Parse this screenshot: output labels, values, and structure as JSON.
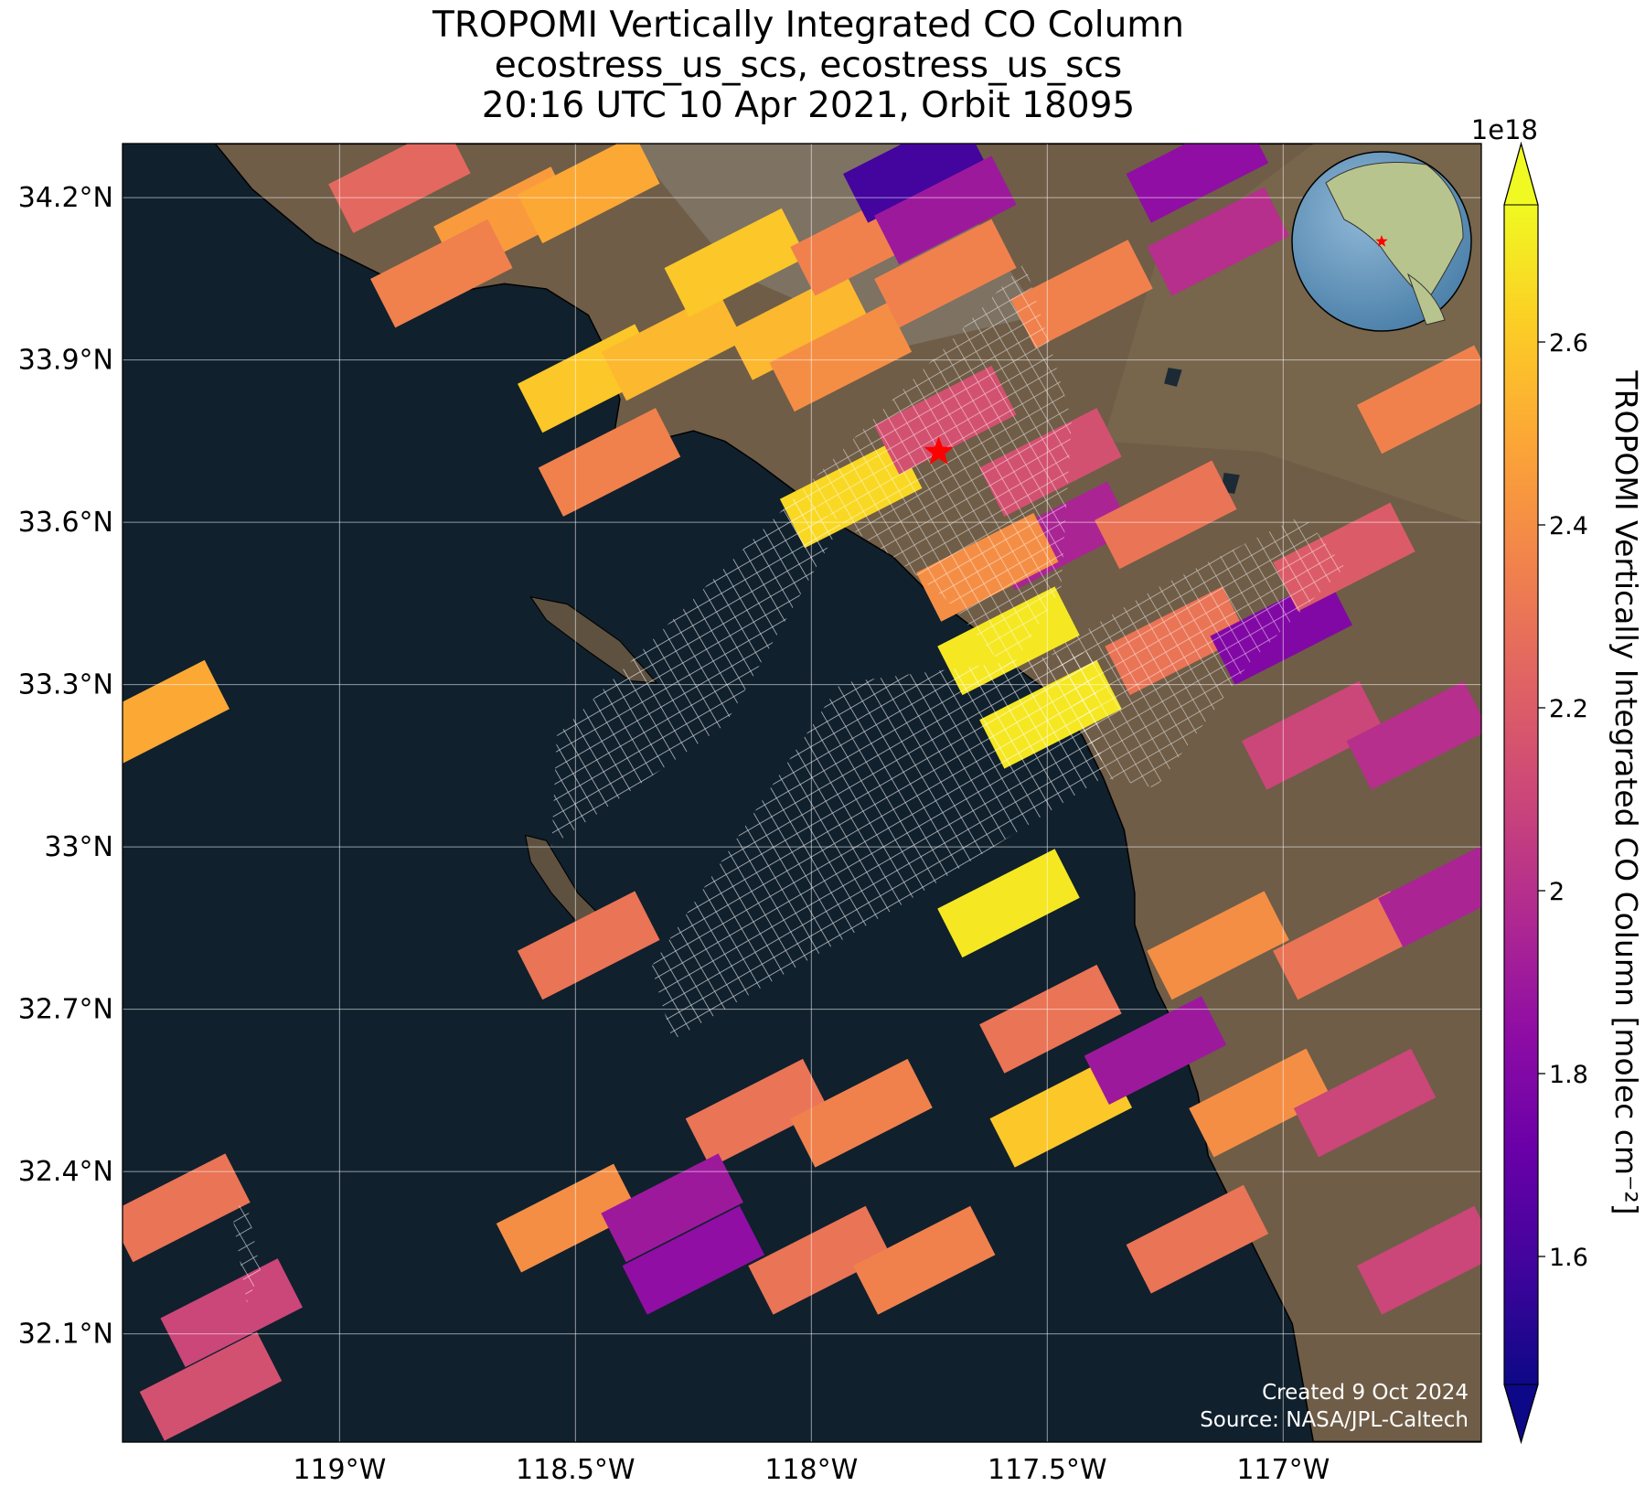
{
  "chart_data": {
    "type": "map",
    "title": [
      "TROPOMI Vertically Integrated CO Column",
      "ecostress_us_scs, ecostress_us_scs",
      "20:16 UTC 10 Apr 2021, Orbit 18095"
    ],
    "xlim": [
      -119.46,
      -116.58
    ],
    "ylim": [
      31.9,
      34.3
    ],
    "xticks": [
      {
        "value": -119,
        "label": "119°W"
      },
      {
        "value": -118.5,
        "label": "118.5°W"
      },
      {
        "value": -118,
        "label": "118°W"
      },
      {
        "value": -117.5,
        "label": "117.5°W"
      },
      {
        "value": -117,
        "label": "117°W"
      }
    ],
    "yticks": [
      {
        "value": 34.2,
        "label": "34.2°N"
      },
      {
        "value": 33.9,
        "label": "33.9°N"
      },
      {
        "value": 33.6,
        "label": "33.6°N"
      },
      {
        "value": 33.3,
        "label": "33.3°N"
      },
      {
        "value": 33.0,
        "label": "33°N"
      },
      {
        "value": 32.7,
        "label": "32.7°N"
      },
      {
        "value": 32.4,
        "label": "32.4°N"
      },
      {
        "value": 32.1,
        "label": "32.1°N"
      }
    ],
    "grid": true,
    "colorbar": {
      "label": "TROPOMI Vertically Integrated CO Column [molec cm⁻²]",
      "offset_label": "1e18",
      "cmap": "plasma",
      "lim": [
        1.46,
        2.75
      ],
      "ticks": [
        1.6,
        1.8,
        2.0,
        2.2,
        2.4,
        2.6
      ]
    },
    "target": {
      "lon": -117.73,
      "lat": 33.73,
      "color": "#ff0000"
    },
    "annotations": [
      "Created 9 Oct 2024",
      "Source: NASA/JPL-Caltech"
    ],
    "tiles": [
      {
        "lon": -118.873,
        "lat": 34.235,
        "value": 2.25
      },
      {
        "lon": -118.65,
        "lat": 34.157,
        "value": 2.45
      },
      {
        "lon": -118.784,
        "lat": 34.06,
        "value": 2.35
      },
      {
        "lon": -118.472,
        "lat": 34.216,
        "value": 2.5
      },
      {
        "lon": -118.472,
        "lat": 33.866,
        "value": 2.6
      },
      {
        "lon": -118.294,
        "lat": 33.925,
        "value": 2.55
      },
      {
        "lon": -118.428,
        "lat": 33.711,
        "value": 2.35
      },
      {
        "lon": -118.161,
        "lat": 34.08,
        "value": 2.6
      },
      {
        "lon": -118.027,
        "lat": 33.963,
        "value": 2.55
      },
      {
        "lon": -117.894,
        "lat": 34.119,
        "value": 2.35
      },
      {
        "lon": -117.938,
        "lat": 33.905,
        "value": 2.4
      },
      {
        "lon": -117.916,
        "lat": 33.653,
        "value": 2.65
      },
      {
        "lon": -117.782,
        "lat": 34.254,
        "value": 1.6
      },
      {
        "lon": -117.716,
        "lat": 34.177,
        "value": 1.9
      },
      {
        "lon": -117.716,
        "lat": 34.06,
        "value": 2.35
      },
      {
        "lon": -117.427,
        "lat": 34.022,
        "value": 2.35
      },
      {
        "lon": -117.138,
        "lat": 34.119,
        "value": 2.0
      },
      {
        "lon": -117.182,
        "lat": 34.254,
        "value": 1.85
      },
      {
        "lon": -117.716,
        "lat": 33.789,
        "value": 2.15
      },
      {
        "lon": -117.493,
        "lat": 33.711,
        "value": 2.15
      },
      {
        "lon": -117.471,
        "lat": 33.575,
        "value": 1.95
      },
      {
        "lon": -117.249,
        "lat": 33.614,
        "value": 2.3
      },
      {
        "lon": -117.627,
        "lat": 33.517,
        "value": 2.4
      },
      {
        "lon": -117.582,
        "lat": 33.381,
        "value": 2.7
      },
      {
        "lon": -117.493,
        "lat": 33.245,
        "value": 2.7
      },
      {
        "lon": -117.227,
        "lat": 33.381,
        "value": 2.3
      },
      {
        "lon": -117.004,
        "lat": 33.4,
        "value": 1.8
      },
      {
        "lon": -116.937,
        "lat": 33.206,
        "value": 2.1
      },
      {
        "lon": -116.715,
        "lat": 33.206,
        "value": 2.0
      },
      {
        "lon": -116.871,
        "lat": 33.536,
        "value": 2.2
      },
      {
        "lon": -116.693,
        "lat": 33.827,
        "value": 2.35
      },
      {
        "lon": -119.384,
        "lat": 33.245,
        "value": 2.5
      },
      {
        "lon": -118.472,
        "lat": 32.818,
        "value": 2.3
      },
      {
        "lon": -117.582,
        "lat": 32.896,
        "value": 2.7
      },
      {
        "lon": -117.493,
        "lat": 32.682,
        "value": 2.3
      },
      {
        "lon": -117.471,
        "lat": 32.508,
        "value": 2.6
      },
      {
        "lon": -117.271,
        "lat": 32.624,
        "value": 1.9
      },
      {
        "lon": -117.138,
        "lat": 32.818,
        "value": 2.4
      },
      {
        "lon": -116.871,
        "lat": 32.818,
        "value": 2.3
      },
      {
        "lon": -117.049,
        "lat": 32.527,
        "value": 2.4
      },
      {
        "lon": -116.827,
        "lat": 32.527,
        "value": 2.1
      },
      {
        "lon": -117.182,
        "lat": 32.275,
        "value": 2.3
      },
      {
        "lon": -116.693,
        "lat": 32.236,
        "value": 2.1
      },
      {
        "lon": -116.648,
        "lat": 32.915,
        "value": 1.95
      },
      {
        "lon": -118.116,
        "lat": 32.508,
        "value": 2.3
      },
      {
        "lon": -117.894,
        "lat": 32.508,
        "value": 2.35
      },
      {
        "lon": -118.517,
        "lat": 32.314,
        "value": 2.4
      },
      {
        "lon": -118.295,
        "lat": 32.333,
        "value": 1.9
      },
      {
        "lon": -118.25,
        "lat": 32.236,
        "value": 1.85
      },
      {
        "lon": -117.983,
        "lat": 32.236,
        "value": 2.3
      },
      {
        "lon": -117.761,
        "lat": 32.236,
        "value": 2.35
      },
      {
        "lon": -119.34,
        "lat": 32.333,
        "value": 2.3
      },
      {
        "lon": -119.229,
        "lat": 32.139,
        "value": 2.1
      },
      {
        "lon": -119.273,
        "lat": 32.003,
        "value": 2.15
      }
    ]
  }
}
